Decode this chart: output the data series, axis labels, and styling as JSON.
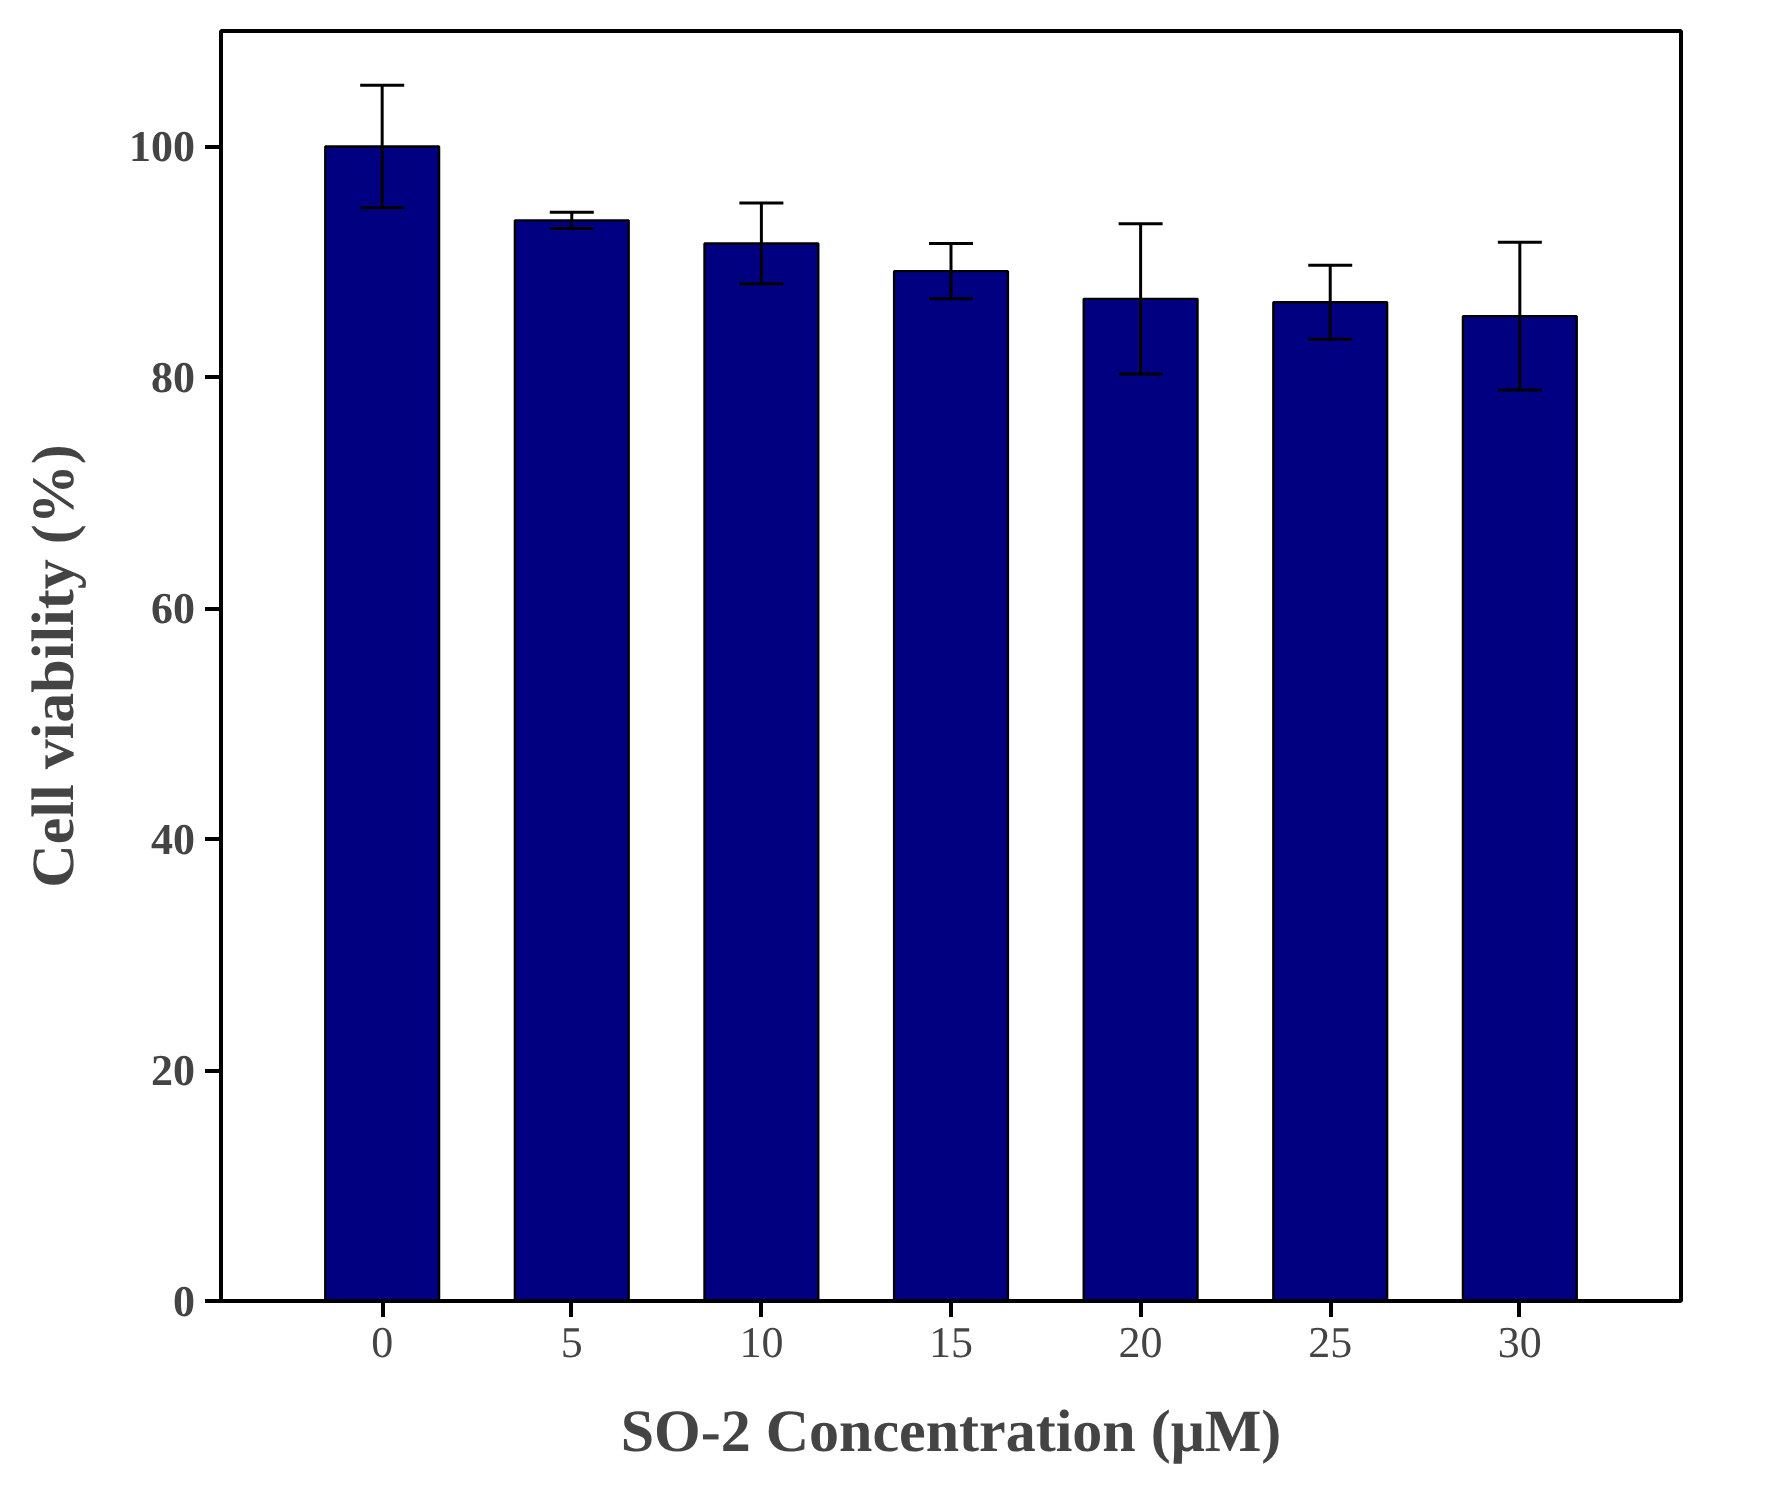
{
  "chart_data": {
    "type": "bar",
    "xlabel": "SO-2 Concentration (μM)",
    "ylabel": "Cell viability (%)",
    "categories": [
      "0",
      "5",
      "10",
      "15",
      "20",
      "25",
      "30"
    ],
    "values": [
      100,
      93.6,
      91.6,
      89.2,
      86.8,
      86.5,
      85.3
    ],
    "errors": [
      5.3,
      0.7,
      3.5,
      2.4,
      6.5,
      3.2,
      6.4
    ],
    "color": "#000080",
    "ylim": [
      0,
      110
    ],
    "yticks": [
      0,
      20,
      40,
      60,
      80,
      100
    ],
    "grid": false
  }
}
